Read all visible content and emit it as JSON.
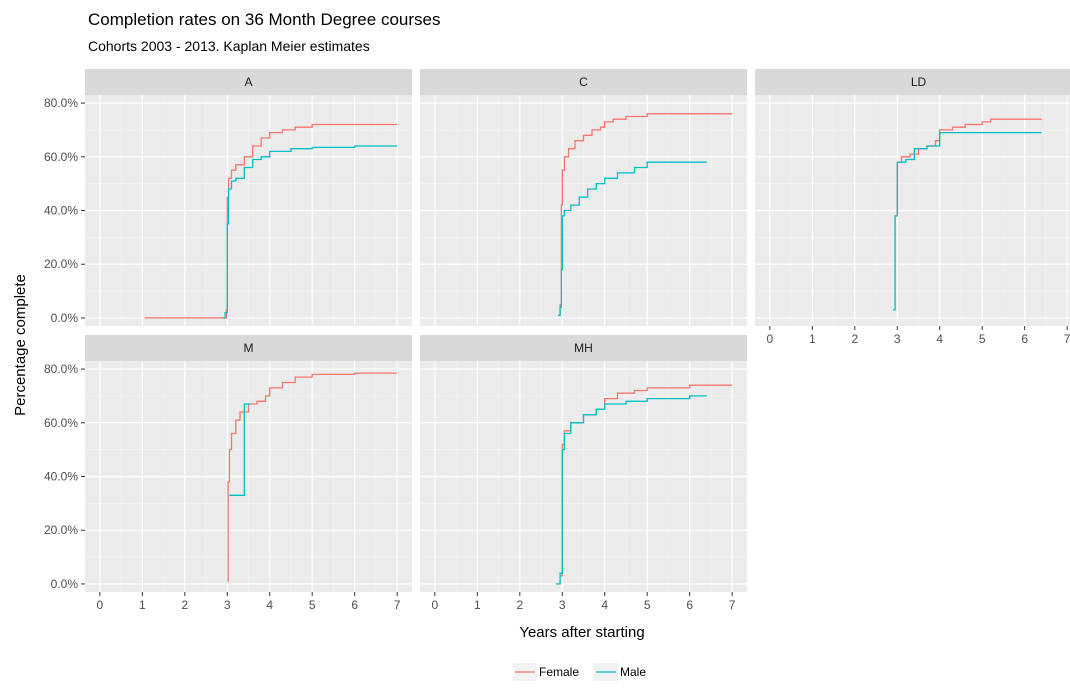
{
  "title": "Completion rates on 36 Month Degree courses",
  "subtitle": "Cohorts 2003 - 2013. Kaplan Meier estimates",
  "chart_data": {
    "type": "line",
    "xlabel": "Years after starting",
    "ylabel": "Percentage complete",
    "xlim": [
      -0.35,
      7.35
    ],
    "ylim": [
      -0.03,
      0.83
    ],
    "xticks": [
      0,
      1,
      2,
      3,
      4,
      5,
      6,
      7
    ],
    "xtick_labels": [
      "0",
      "1",
      "2",
      "3",
      "4",
      "5",
      "6",
      "7"
    ],
    "yticks": [
      0,
      0.2,
      0.4,
      0.6,
      0.8
    ],
    "ytick_labels": [
      "0.0%",
      "20.0%",
      "40.0%",
      "60.0%",
      "80.0%"
    ],
    "legend_position": "bottom",
    "grid": true,
    "series_styles": [
      {
        "name": "Female",
        "color": "#F8766D"
      },
      {
        "name": "Male",
        "color": "#00BFC4"
      }
    ],
    "panels": [
      {
        "label": "A",
        "series": [
          {
            "name": "Female",
            "points": [
              [
                1.05,
                0
              ],
              [
                2.95,
                0
              ],
              [
                2.98,
                0.03
              ],
              [
                3.0,
                0.45
              ],
              [
                3.03,
                0.52
              ],
              [
                3.1,
                0.55
              ],
              [
                3.2,
                0.57
              ],
              [
                3.4,
                0.6
              ],
              [
                3.6,
                0.64
              ],
              [
                3.8,
                0.67
              ],
              [
                4.0,
                0.69
              ],
              [
                4.3,
                0.7
              ],
              [
                4.6,
                0.71
              ],
              [
                5.0,
                0.72
              ],
              [
                6.0,
                0.72
              ],
              [
                7.0,
                0.72
              ]
            ]
          },
          {
            "name": "Male",
            "points": [
              [
                2.9,
                0
              ],
              [
                2.95,
                0.02
              ],
              [
                3.0,
                0.35
              ],
              [
                3.03,
                0.48
              ],
              [
                3.1,
                0.51
              ],
              [
                3.2,
                0.52
              ],
              [
                3.4,
                0.56
              ],
              [
                3.6,
                0.59
              ],
              [
                3.8,
                0.6
              ],
              [
                4.0,
                0.62
              ],
              [
                4.5,
                0.63
              ],
              [
                5.0,
                0.635
              ],
              [
                6.0,
                0.64
              ],
              [
                7.0,
                0.64
              ]
            ]
          }
        ]
      },
      {
        "label": "C",
        "series": [
          {
            "name": "Female",
            "points": [
              [
                2.9,
                0.01
              ],
              [
                2.95,
                0.05
              ],
              [
                2.98,
                0.42
              ],
              [
                3.0,
                0.55
              ],
              [
                3.05,
                0.6
              ],
              [
                3.15,
                0.63
              ],
              [
                3.3,
                0.66
              ],
              [
                3.5,
                0.68
              ],
              [
                3.7,
                0.7
              ],
              [
                3.9,
                0.71
              ],
              [
                4.0,
                0.73
              ],
              [
                4.2,
                0.74
              ],
              [
                4.5,
                0.75
              ],
              [
                5.0,
                0.76
              ],
              [
                6.0,
                0.76
              ],
              [
                7.0,
                0.76
              ]
            ]
          },
          {
            "name": "Male",
            "points": [
              [
                2.9,
                0.01
              ],
              [
                2.95,
                0.04
              ],
              [
                2.98,
                0.18
              ],
              [
                3.0,
                0.38
              ],
              [
                3.05,
                0.4
              ],
              [
                3.2,
                0.42
              ],
              [
                3.4,
                0.45
              ],
              [
                3.6,
                0.48
              ],
              [
                3.8,
                0.5
              ],
              [
                4.0,
                0.52
              ],
              [
                4.3,
                0.54
              ],
              [
                4.7,
                0.56
              ],
              [
                5.0,
                0.58
              ],
              [
                6.0,
                0.58
              ],
              [
                6.4,
                0.58
              ]
            ]
          }
        ]
      },
      {
        "label": "LD",
        "series": [
          {
            "name": "Female",
            "points": [
              [
                2.95,
                0.38
              ],
              [
                3.0,
                0.58
              ],
              [
                3.1,
                0.6
              ],
              [
                3.3,
                0.61
              ],
              [
                3.5,
                0.63
              ],
              [
                3.7,
                0.64
              ],
              [
                3.9,
                0.66
              ],
              [
                4.0,
                0.7
              ],
              [
                4.3,
                0.71
              ],
              [
                4.6,
                0.72
              ],
              [
                5.0,
                0.73
              ],
              [
                5.2,
                0.74
              ],
              [
                6.0,
                0.74
              ],
              [
                6.4,
                0.74
              ]
            ]
          },
          {
            "name": "Male",
            "points": [
              [
                2.9,
                0.03
              ],
              [
                2.95,
                0.38
              ],
              [
                3.0,
                0.58
              ],
              [
                3.2,
                0.59
              ],
              [
                3.4,
                0.63
              ],
              [
                3.7,
                0.64
              ],
              [
                4.0,
                0.69
              ],
              [
                5.0,
                0.69
              ],
              [
                6.0,
                0.69
              ],
              [
                6.4,
                0.69
              ]
            ]
          }
        ]
      },
      {
        "label": "M",
        "series": [
          {
            "name": "Female",
            "points": [
              [
                3.0,
                0.01
              ],
              [
                3.02,
                0.38
              ],
              [
                3.05,
                0.5
              ],
              [
                3.1,
                0.56
              ],
              [
                3.2,
                0.61
              ],
              [
                3.3,
                0.64
              ],
              [
                3.5,
                0.67
              ],
              [
                3.7,
                0.68
              ],
              [
                3.9,
                0.7
              ],
              [
                4.0,
                0.73
              ],
              [
                4.3,
                0.75
              ],
              [
                4.6,
                0.77
              ],
              [
                5.0,
                0.78
              ],
              [
                6.0,
                0.785
              ],
              [
                7.0,
                0.785
              ]
            ]
          },
          {
            "name": "Male",
            "points": [
              [
                3.05,
                0.33
              ],
              [
                3.4,
                0.33
              ],
              [
                3.4,
                0.67
              ],
              [
                3.55,
                0.67
              ]
            ]
          }
        ]
      },
      {
        "label": "MH",
        "series": [
          {
            "name": "Female",
            "points": [
              [
                2.95,
                0.03
              ],
              [
                3.0,
                0.52
              ],
              [
                3.05,
                0.57
              ],
              [
                3.2,
                0.6
              ],
              [
                3.5,
                0.63
              ],
              [
                3.8,
                0.65
              ],
              [
                4.0,
                0.69
              ],
              [
                4.3,
                0.71
              ],
              [
                4.7,
                0.72
              ],
              [
                5.0,
                0.73
              ],
              [
                6.0,
                0.74
              ],
              [
                7.0,
                0.74
              ]
            ]
          },
          {
            "name": "Male",
            "points": [
              [
                2.85,
                0
              ],
              [
                2.95,
                0.04
              ],
              [
                3.0,
                0.5
              ],
              [
                3.05,
                0.56
              ],
              [
                3.2,
                0.6
              ],
              [
                3.5,
                0.63
              ],
              [
                3.8,
                0.65
              ],
              [
                4.0,
                0.67
              ],
              [
                4.5,
                0.68
              ],
              [
                5.0,
                0.69
              ],
              [
                6.0,
                0.7
              ],
              [
                6.4,
                0.7
              ]
            ]
          }
        ]
      }
    ]
  }
}
